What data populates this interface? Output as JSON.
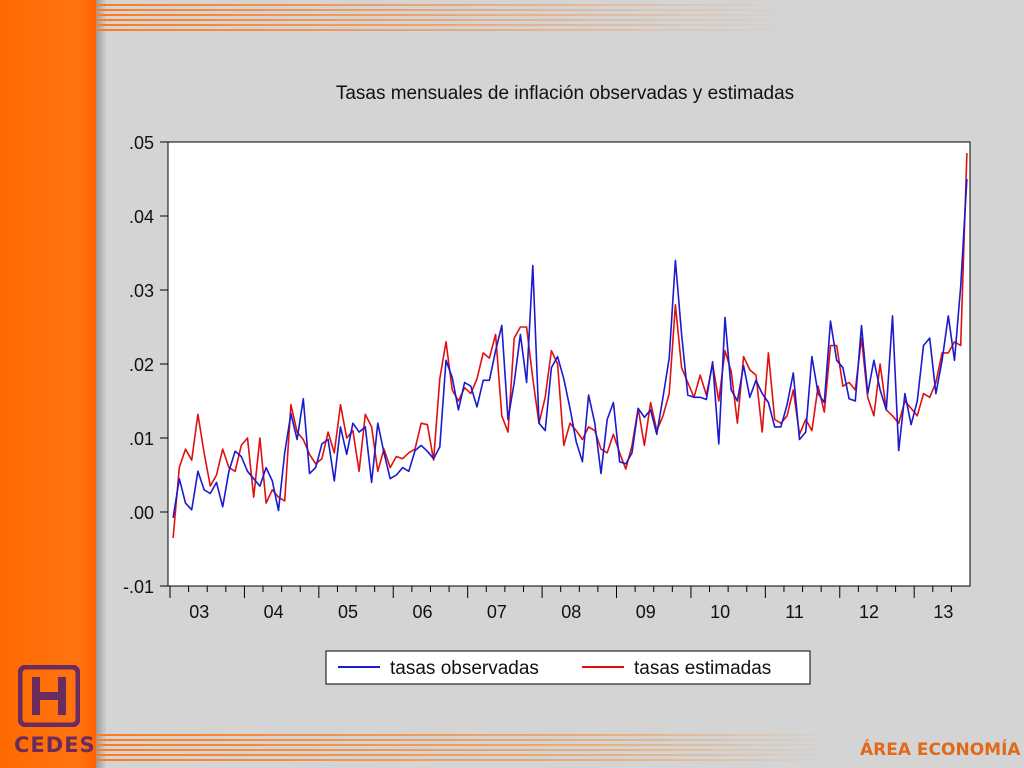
{
  "footer": {
    "logo_text": "CEDES",
    "area_text": "ÁREA ECONOMÍA"
  },
  "colors": {
    "left_band": "#ff6a00",
    "stripe": "#ff7a1a",
    "observed": "#1a1ad0",
    "estimated": "#e01010"
  },
  "chart_data": {
    "type": "line",
    "title": "Tasas mensuales de inflación observadas y estimadas",
    "xlabel": "",
    "ylabel": "",
    "ylim": [
      -0.01,
      0.05
    ],
    "y_ticks": [
      ".05",
      ".04",
      ".03",
      ".02",
      ".01",
      ".00",
      "-.01"
    ],
    "y_tick_values": [
      0.05,
      0.04,
      0.03,
      0.02,
      0.01,
      0.0,
      -0.01
    ],
    "x_labels": [
      "03",
      "04",
      "05",
      "06",
      "07",
      "08",
      "09",
      "10",
      "11",
      "12",
      "13"
    ],
    "x_start_year": 2003,
    "grid": false,
    "legend": "bottom-center",
    "series": [
      {
        "name": "tasas observadas",
        "color": "#1a1ad0",
        "values": [
          -0.0008,
          0.0045,
          0.0012,
          0.0003,
          0.0055,
          0.003,
          0.0025,
          0.004,
          0.0007,
          0.0055,
          0.0082,
          0.0075,
          0.0055,
          0.0045,
          0.0035,
          0.006,
          0.0042,
          0.0002,
          0.008,
          0.0133,
          0.0098,
          0.0153,
          0.0052,
          0.006,
          0.0092,
          0.0098,
          0.0042,
          0.0115,
          0.0078,
          0.012,
          0.0108,
          0.0115,
          0.004,
          0.012,
          0.008,
          0.0045,
          0.005,
          0.006,
          0.0055,
          0.0083,
          0.009,
          0.0082,
          0.0072,
          0.0088,
          0.0205,
          0.0182,
          0.0138,
          0.0175,
          0.017,
          0.0142,
          0.0178,
          0.0178,
          0.0218,
          0.0252,
          0.0125,
          0.0175,
          0.024,
          0.0175,
          0.0333,
          0.012,
          0.011,
          0.0195,
          0.021,
          0.018,
          0.014,
          0.0095,
          0.0068,
          0.0158,
          0.012,
          0.0052,
          0.0125,
          0.0148,
          0.0068,
          0.0065,
          0.008,
          0.014,
          0.0128,
          0.0138,
          0.0105,
          0.0155,
          0.0208,
          0.034,
          0.024,
          0.0158,
          0.0155,
          0.0155,
          0.0152,
          0.0203,
          0.0092,
          0.0263,
          0.0165,
          0.015,
          0.0198,
          0.0155,
          0.0178,
          0.016,
          0.0148,
          0.0115,
          0.0115,
          0.0145,
          0.0188,
          0.0098,
          0.0108,
          0.021,
          0.016,
          0.0148,
          0.0258,
          0.0205,
          0.0195,
          0.0153,
          0.015,
          0.0252,
          0.016,
          0.0205,
          0.0165,
          0.0138,
          0.0265,
          0.0083,
          0.016,
          0.0118,
          0.015,
          0.0225,
          0.0235,
          0.016,
          0.0205,
          0.0265,
          0.0205,
          0.0305,
          0.045
        ]
      },
      {
        "name": "tasas estimadas",
        "color": "#e01010",
        "values": [
          -0.0035,
          0.006,
          0.0085,
          0.007,
          0.0132,
          0.008,
          0.0035,
          0.005,
          0.0085,
          0.006,
          0.0055,
          0.009,
          0.01,
          0.002,
          0.01,
          0.0012,
          0.003,
          0.002,
          0.0015,
          0.0145,
          0.0108,
          0.0098,
          0.0078,
          0.0065,
          0.0072,
          0.0108,
          0.008,
          0.0145,
          0.01,
          0.011,
          0.0055,
          0.0132,
          0.0115,
          0.0055,
          0.0085,
          0.006,
          0.0075,
          0.0072,
          0.008,
          0.0085,
          0.012,
          0.0118,
          0.007,
          0.018,
          0.023,
          0.0165,
          0.015,
          0.0168,
          0.016,
          0.018,
          0.0215,
          0.0208,
          0.024,
          0.013,
          0.0108,
          0.0235,
          0.025,
          0.025,
          0.018,
          0.012,
          0.0155,
          0.0218,
          0.02,
          0.009,
          0.012,
          0.011,
          0.0098,
          0.0115,
          0.011,
          0.0085,
          0.008,
          0.0105,
          0.008,
          0.0058,
          0.009,
          0.014,
          0.009,
          0.0148,
          0.011,
          0.013,
          0.016,
          0.028,
          0.0195,
          0.0175,
          0.0155,
          0.0185,
          0.0158,
          0.02,
          0.015,
          0.0218,
          0.019,
          0.012,
          0.021,
          0.0192,
          0.0185,
          0.0108,
          0.0215,
          0.0125,
          0.012,
          0.013,
          0.0165,
          0.0105,
          0.0125,
          0.011,
          0.017,
          0.0135,
          0.0225,
          0.0225,
          0.017,
          0.0175,
          0.0165,
          0.0235,
          0.0155,
          0.013,
          0.02,
          0.0138,
          0.013,
          0.012,
          0.015,
          0.014,
          0.013,
          0.016,
          0.0155,
          0.0175,
          0.0215,
          0.0215,
          0.023,
          0.0225,
          0.0485
        ]
      }
    ]
  }
}
